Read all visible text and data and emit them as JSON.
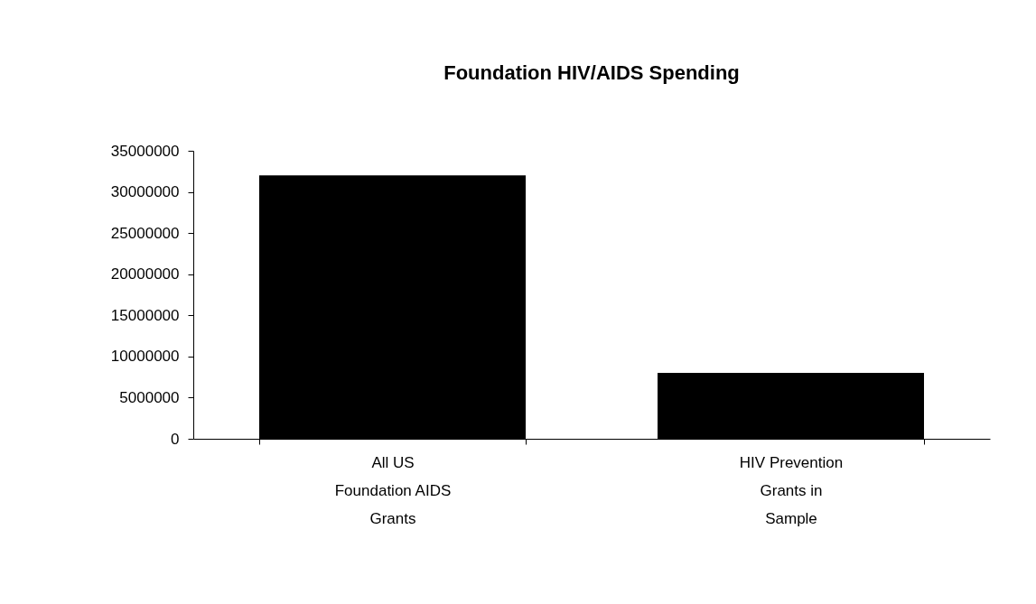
{
  "chart_data": {
    "type": "bar",
    "title": "Foundation HIV/AIDS Spending",
    "categories": [
      "All US\nFoundation AIDS\nGrants",
      "HIV Prevention\nGrants in\nSample"
    ],
    "values": [
      32000000,
      8000000
    ],
    "color": "#000000",
    "ylim": [
      0,
      35000000
    ],
    "yticks": [
      0,
      5000000,
      10000000,
      15000000,
      20000000,
      25000000,
      30000000,
      35000000
    ],
    "grid": false
  }
}
